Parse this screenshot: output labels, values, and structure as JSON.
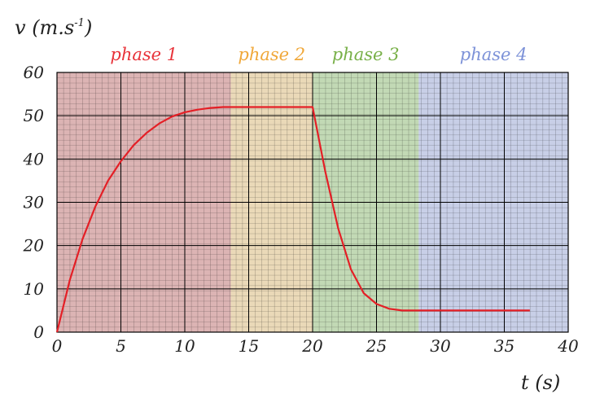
{
  "chart_data": {
    "type": "line",
    "ylabel_main": "v (m.s",
    "ylabel_exp": "-1",
    "ylabel_close": ")",
    "xlabel": "t (s)",
    "xlim": [
      0,
      40
    ],
    "ylim": [
      0,
      60
    ],
    "x_ticks": [
      "0",
      "5",
      "10",
      "15",
      "20",
      "25",
      "30",
      "35",
      "40"
    ],
    "y_ticks": [
      "0",
      "10",
      "20",
      "30",
      "40",
      "50",
      "60"
    ],
    "grid": true,
    "phases": [
      {
        "label": "phase 1",
        "x_start": 0,
        "x_end": 13.6,
        "color": "#e8333a",
        "fill": "#a23a3a"
      },
      {
        "label": "phase 2",
        "x_start": 13.6,
        "x_end": 20,
        "color": "#f0a83a",
        "fill": "#c89a45"
      },
      {
        "label": "phase 3",
        "x_start": 20,
        "x_end": 28.3,
        "color": "#78b048",
        "fill": "#5f9a3c"
      },
      {
        "label": "phase 4",
        "x_start": 28.3,
        "x_end": 40,
        "color": "#7d92d8",
        "fill": "#6f82bf"
      }
    ],
    "series": [
      {
        "color": "#e41f26",
        "x": [
          0,
          1,
          2,
          3,
          4,
          5,
          6,
          7,
          8,
          9,
          10,
          11,
          12,
          13,
          14,
          16,
          18,
          20,
          21,
          22,
          23,
          24,
          25,
          26,
          27,
          28,
          30,
          33,
          37
        ],
        "y": [
          0,
          12,
          21.5,
          29,
          35,
          39.5,
          43.2,
          46,
          48.2,
          49.8,
          50.8,
          51.4,
          51.8,
          52,
          52,
          52,
          52,
          52,
          37,
          24,
          14.5,
          9,
          6.5,
          5.4,
          5,
          5,
          5,
          5,
          5
        ]
      }
    ]
  }
}
